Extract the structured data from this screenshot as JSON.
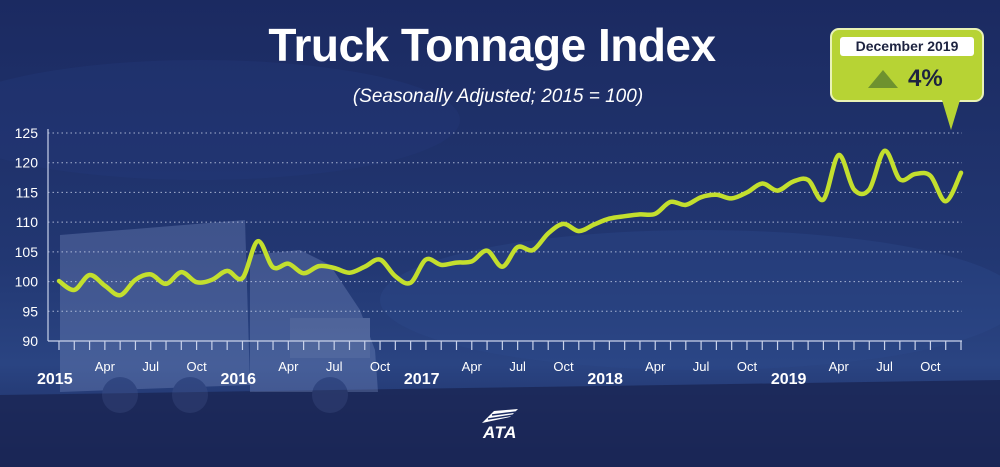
{
  "header": {
    "title": "Truck Tonnage Index",
    "subtitle": "(Seasonally Adjusted; 2015 = 100)"
  },
  "callout": {
    "period": "December 2019",
    "value": "4%",
    "direction_icon": "up-triangle-icon"
  },
  "logo": {
    "text": "ATA"
  },
  "colors": {
    "background": "#1d2d63",
    "line": "#c3df2e",
    "grid": "#c9d2ea",
    "text": "#ffffff",
    "callout": "#b7d334",
    "callout_triangle": "#6e922f"
  },
  "chart_data": {
    "type": "line",
    "title": "Truck Tonnage Index",
    "subtitle": "(Seasonally Adjusted; 2015 = 100)",
    "xlabel": "",
    "ylabel": "",
    "ylim": [
      90,
      125
    ],
    "yticks": [
      90,
      95,
      100,
      105,
      110,
      115,
      120,
      125
    ],
    "grid": "horizontal dotted",
    "x_labels": [
      {
        "index": 0,
        "label": "2015",
        "year": true
      },
      {
        "index": 3,
        "label": "Apr"
      },
      {
        "index": 6,
        "label": "Jul"
      },
      {
        "index": 9,
        "label": "Oct"
      },
      {
        "index": 12,
        "label": "2016",
        "year": true
      },
      {
        "index": 15,
        "label": "Apr"
      },
      {
        "index": 18,
        "label": "Jul"
      },
      {
        "index": 21,
        "label": "Oct"
      },
      {
        "index": 24,
        "label": "2017",
        "year": true
      },
      {
        "index": 27,
        "label": "Apr"
      },
      {
        "index": 30,
        "label": "Jul"
      },
      {
        "index": 33,
        "label": "Oct"
      },
      {
        "index": 36,
        "label": "2018",
        "year": true
      },
      {
        "index": 39,
        "label": "Apr"
      },
      {
        "index": 42,
        "label": "Jul"
      },
      {
        "index": 45,
        "label": "Oct"
      },
      {
        "index": 48,
        "label": "2019",
        "year": true
      },
      {
        "index": 51,
        "label": "Apr"
      },
      {
        "index": 54,
        "label": "Jul"
      },
      {
        "index": 57,
        "label": "Oct"
      }
    ],
    "series": [
      {
        "values": [
          100.1,
          98.6,
          101.1,
          99.3,
          97.7,
          100.3,
          101.2,
          99.6,
          101.6,
          99.9,
          100.3,
          101.8,
          100.6,
          106.8,
          102.4,
          103.0,
          101.4,
          102.6,
          102.3,
          101.5,
          102.5,
          103.7,
          100.9,
          99.8,
          103.7,
          102.8,
          103.2,
          103.4,
          105.2,
          102.5,
          105.8,
          105.3,
          108.1,
          109.7,
          108.5,
          109.6,
          110.6,
          111.0,
          111.3,
          111.4,
          113.4,
          112.9,
          114.2,
          114.6,
          114.0,
          115.0,
          116.5,
          115.3,
          116.8,
          117.1,
          113.8,
          121.3,
          115.5,
          115.5,
          122.0,
          117.2,
          118.1,
          117.8,
          113.5,
          118.3
        ]
      }
    ]
  }
}
